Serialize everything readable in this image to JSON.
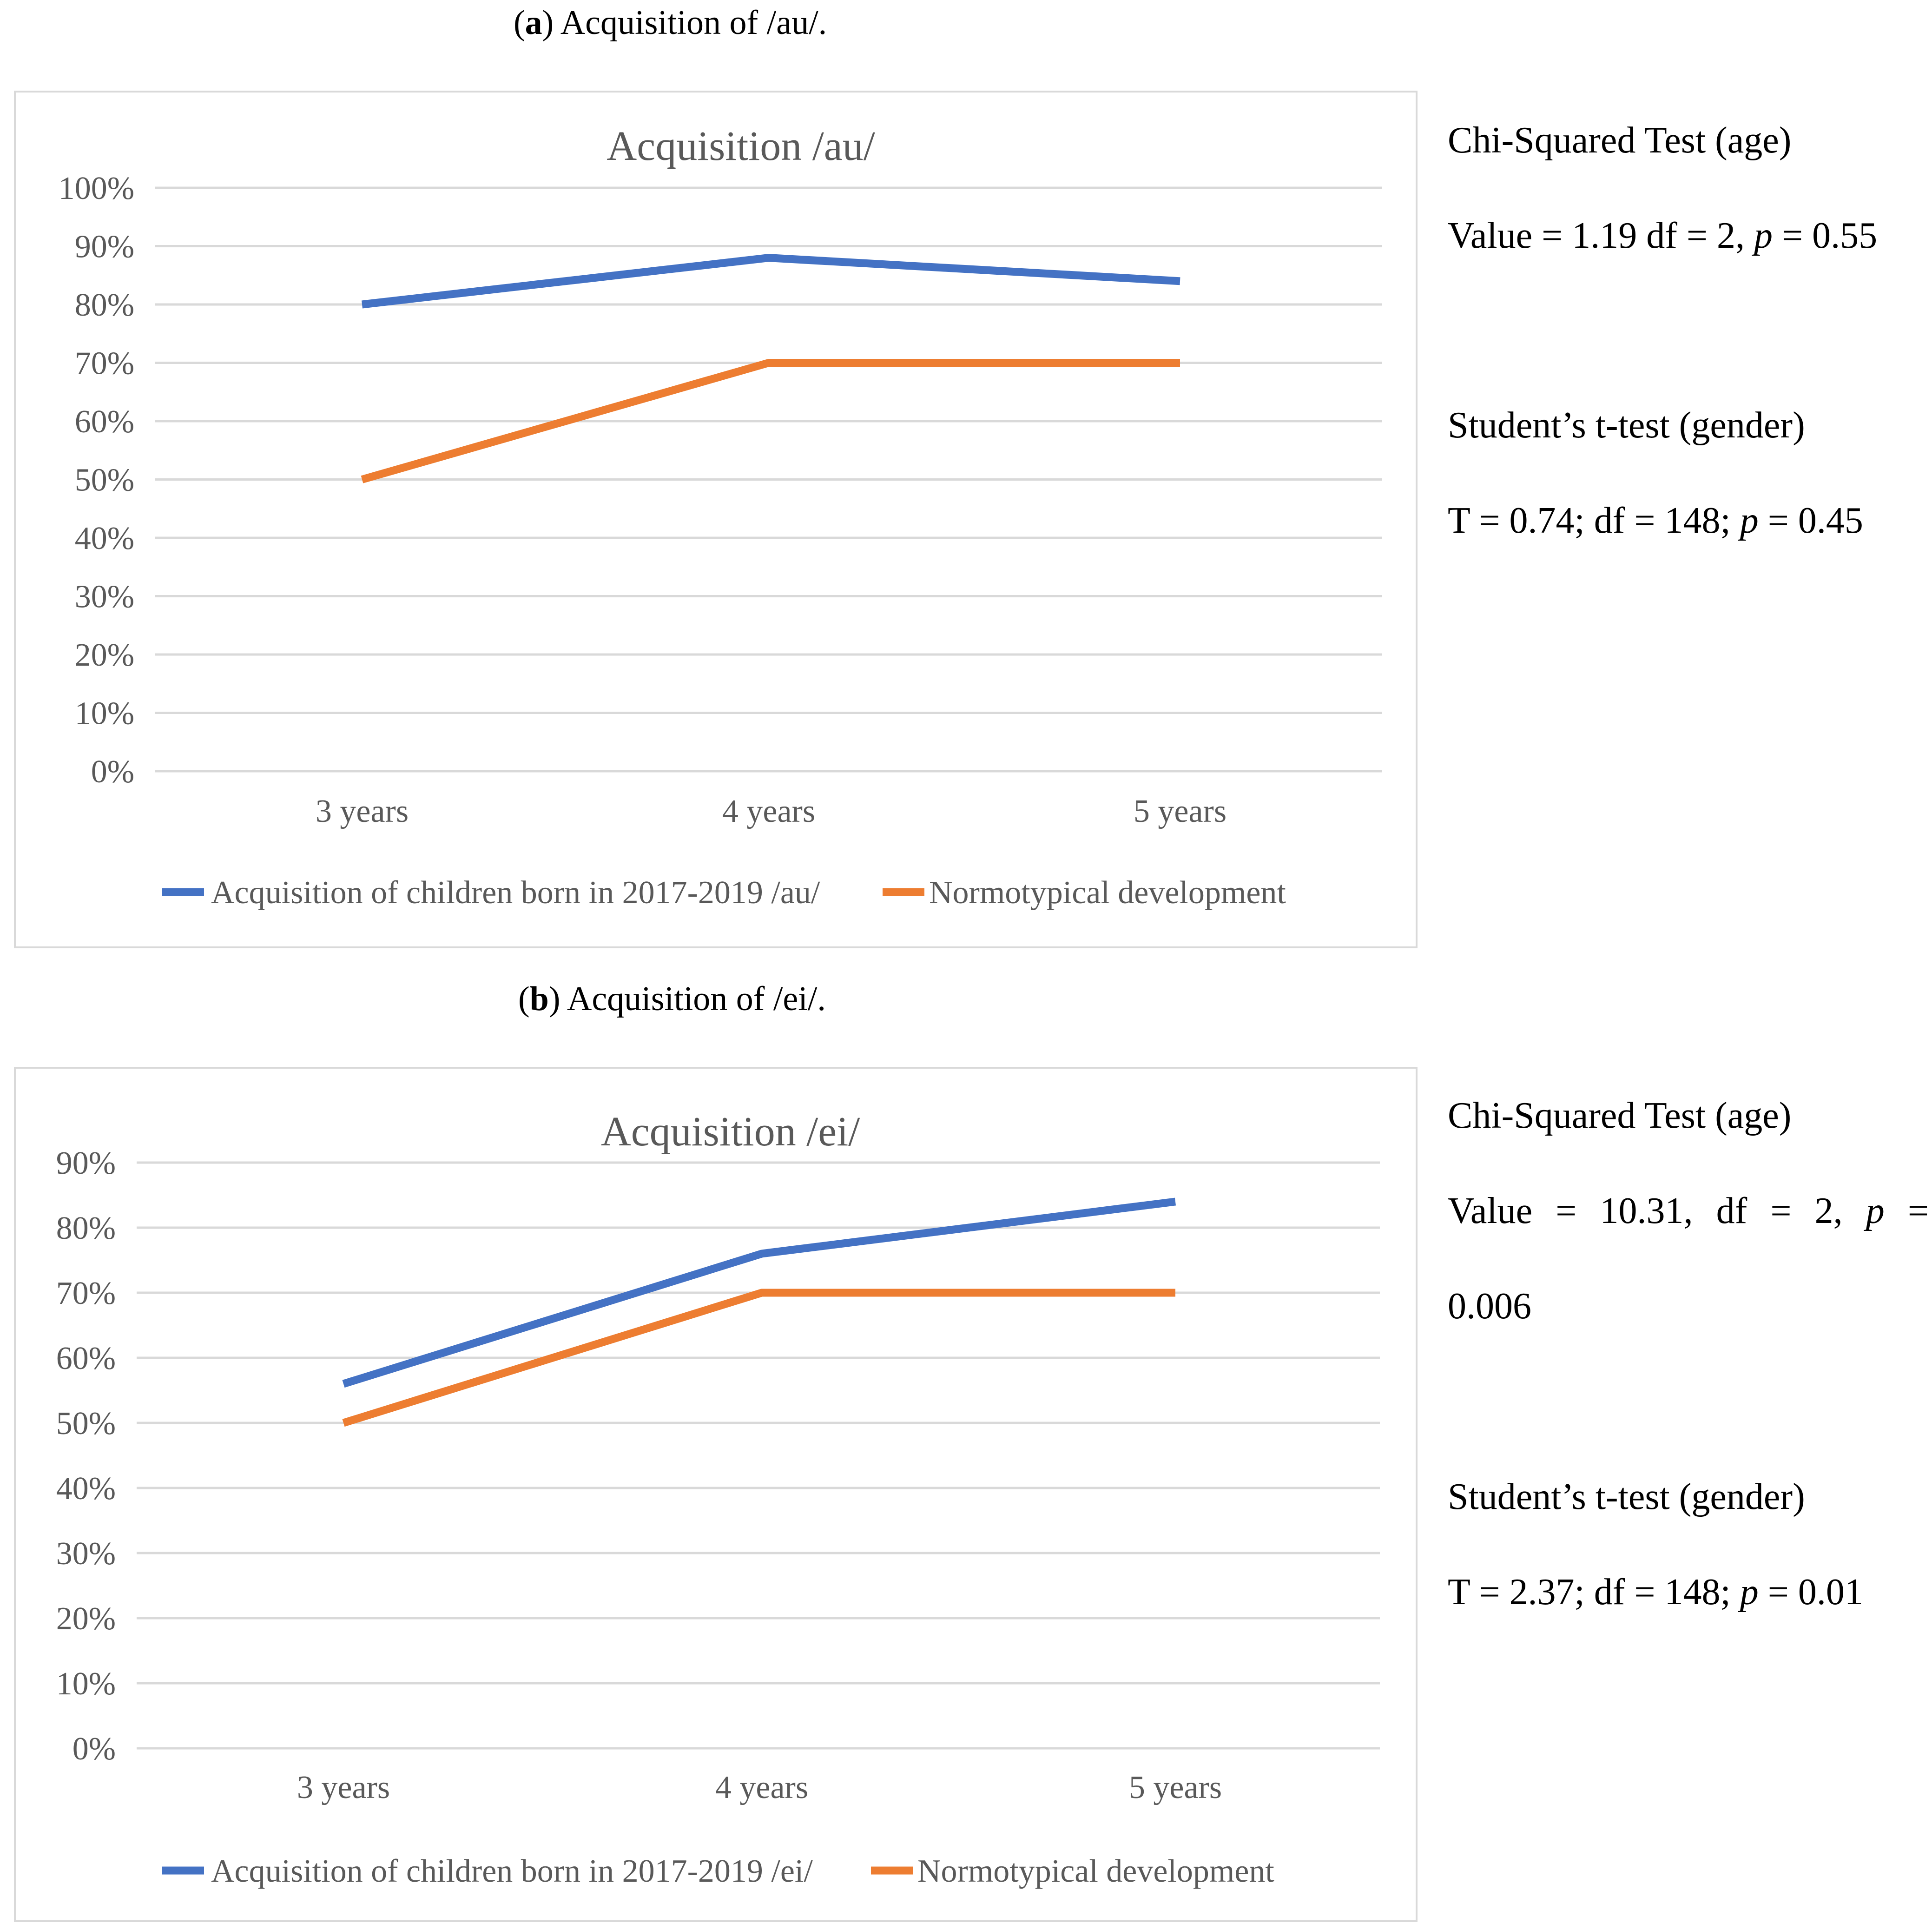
{
  "panel_a": {
    "caption_letter": "a",
    "caption_text": "Acquisition of /au/.",
    "stats": {
      "chi_title": "Chi-Squared Test (age)",
      "chi_value_prefix": "Value = 1.19 df = 2, ",
      "chi_value_p": "p",
      "chi_value_suffix": " = 0.55",
      "t_title": "Student’s t-test (gender)",
      "t_value_prefix": "T = 0.74; df = 148; ",
      "t_value_p": "p",
      "t_value_suffix": " = 0.45"
    }
  },
  "panel_b": {
    "caption_letter": "b",
    "caption_text": "Acquisition of /ei/.",
    "stats": {
      "chi_title": "Chi-Squared Test (age)",
      "chi_value_tokens": [
        "Value",
        "=",
        "10.31,",
        "df",
        "=",
        "2,",
        "p",
        "="
      ],
      "chi_value_cont": "0.006",
      "t_title": "Student’s t-test (gender)",
      "t_value_prefix": "T = 2.37; df = 148; ",
      "t_value_p": "p",
      "t_value_suffix": " = 0.01"
    }
  },
  "colors": {
    "blue": "#4472c4",
    "orange": "#ed7d31",
    "grid": "#d9d9d9",
    "text": "#595959"
  },
  "chart_data": [
    {
      "type": "line",
      "title": "Acquisition /au/",
      "categories": [
        "3 years",
        "4 years",
        "5 years"
      ],
      "series": [
        {
          "name": "Acquisition of children born in 2017-2019 /au/",
          "color": "#4472c4",
          "values": [
            0.8,
            0.88,
            0.84
          ]
        },
        {
          "name": "Normotypical development",
          "color": "#ed7d31",
          "values": [
            0.5,
            0.7,
            0.7
          ]
        }
      ],
      "ylim": [
        0,
        1.0
      ],
      "yticks": [
        "0%",
        "10%",
        "20%",
        "30%",
        "40%",
        "50%",
        "60%",
        "70%",
        "80%",
        "90%",
        "100%"
      ],
      "grid": true,
      "legend": "bottom",
      "xlabel": "",
      "ylabel": ""
    },
    {
      "type": "line",
      "title": "Acquisition /ei/",
      "categories": [
        "3 years",
        "4 years",
        "5 years"
      ],
      "series": [
        {
          "name": "Acquisition of children born in 2017-2019 /ei/",
          "color": "#4472c4",
          "values": [
            0.56,
            0.76,
            0.84
          ]
        },
        {
          "name": "Normotypical development",
          "color": "#ed7d31",
          "values": [
            0.5,
            0.7,
            0.7
          ]
        }
      ],
      "ylim": [
        0,
        0.9
      ],
      "yticks": [
        "0%",
        "10%",
        "20%",
        "30%",
        "40%",
        "50%",
        "60%",
        "70%",
        "80%",
        "90%"
      ],
      "grid": true,
      "legend": "bottom",
      "xlabel": "",
      "ylabel": ""
    }
  ]
}
